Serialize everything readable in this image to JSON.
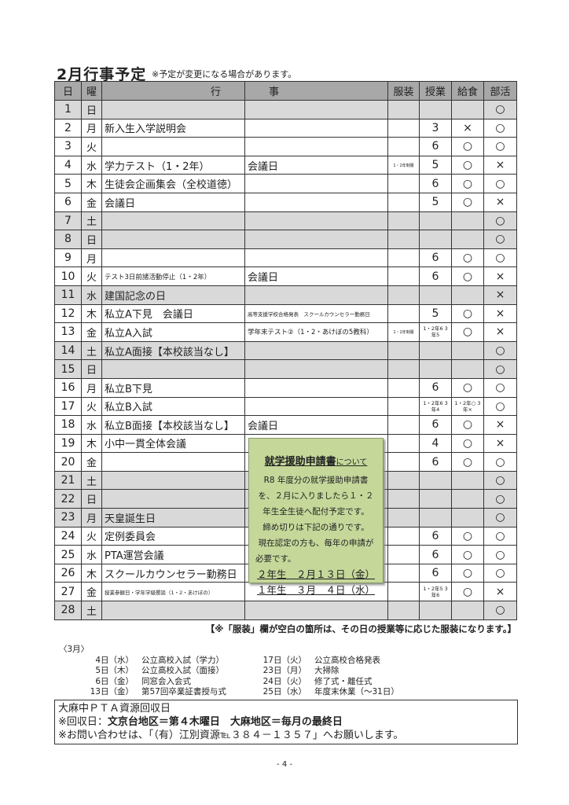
{
  "title": "2月行事予定",
  "subtitle": "※予定が変更になる場合があります。",
  "headers": [
    "日",
    "曜",
    "行",
    "事",
    "服装",
    "授業",
    "給食",
    "部活"
  ],
  "rows": [
    {
      "d": "1",
      "w": "日",
      "e1": "",
      "e2": "",
      "f": "",
      "j": "",
      "k": "",
      "b": "○",
      "hol": true
    },
    {
      "d": "2",
      "w": "月",
      "e1": "新入生入学説明会",
      "e2": "",
      "f": "",
      "j": "3",
      "k": "×",
      "b": "○"
    },
    {
      "d": "3",
      "w": "火",
      "e1": "",
      "e2": "",
      "f": "",
      "j": "6",
      "k": "○",
      "b": "○"
    },
    {
      "d": "4",
      "w": "水",
      "e1": "学力テスト（1・2年）",
      "e2": "会議日",
      "f": "1・2年制服",
      "j": "5",
      "k": "○",
      "b": "×"
    },
    {
      "d": "5",
      "w": "木",
      "e1": "生徒会企画集会（全校道徳）",
      "e2": "",
      "f": "",
      "j": "6",
      "k": "○",
      "b": "○"
    },
    {
      "d": "6",
      "w": "金",
      "e1": "会議日",
      "e2": "",
      "f": "",
      "j": "5",
      "k": "○",
      "b": "×"
    },
    {
      "d": "7",
      "w": "土",
      "e1": "",
      "e2": "",
      "f": "",
      "j": "",
      "k": "",
      "b": "○",
      "hol": true
    },
    {
      "d": "8",
      "w": "日",
      "e1": "",
      "e2": "",
      "f": "",
      "j": "",
      "k": "",
      "b": "○",
      "hol": true
    },
    {
      "d": "9",
      "w": "月",
      "e1": "",
      "e2": "",
      "f": "",
      "j": "6",
      "k": "○",
      "b": "○"
    },
    {
      "d": "10",
      "w": "火",
      "e1": "テスト3日前諸活動停止（1・2年）",
      "e2": "会議日",
      "f": "",
      "j": "6",
      "k": "○",
      "b": "×",
      "e1small": true
    },
    {
      "d": "11",
      "w": "水",
      "e1": "建国記念の日",
      "e2": "",
      "f": "",
      "j": "",
      "k": "",
      "b": "×",
      "hol": true
    },
    {
      "d": "12",
      "w": "木",
      "e1": "私立A下見　会議日",
      "e2": "高等支援学校合格発表　スクールカウンセラー勤務日",
      "f": "",
      "j": "5",
      "k": "○",
      "b": "×",
      "e2tiny": true
    },
    {
      "d": "13",
      "w": "金",
      "e1": "私立A入試",
      "e2": "学年末テスト②（1・2・あけぼの5教科）",
      "f": "1・2年制服",
      "j": "1・2年6 3年5",
      "k": "○",
      "b": "×",
      "e2small": true,
      "jtiny": true
    },
    {
      "d": "14",
      "w": "土",
      "e1": "私立A面接【本校該当なし】",
      "e2": "",
      "f": "",
      "j": "",
      "k": "",
      "b": "○",
      "hol": true
    },
    {
      "d": "15",
      "w": "日",
      "e1": "",
      "e2": "",
      "f": "",
      "j": "",
      "k": "",
      "b": "○",
      "hol": true
    },
    {
      "d": "16",
      "w": "月",
      "e1": "私立B下見",
      "e2": "",
      "f": "",
      "j": "6",
      "k": "○",
      "b": "○"
    },
    {
      "d": "17",
      "w": "火",
      "e1": "私立B入試",
      "e2": "",
      "f": "",
      "j": "1・2年6 3年4",
      "k": "1・2年○ 3年×",
      "b": "○",
      "jtiny": true,
      "ktiny": true
    },
    {
      "d": "18",
      "w": "水",
      "e1": "私立B面接【本校該当なし】",
      "e2": "会議日",
      "f": "",
      "j": "6",
      "k": "○",
      "b": "×"
    },
    {
      "d": "19",
      "w": "木",
      "e1": "小中一貫全体会議",
      "e2": "",
      "f": "",
      "j": "4",
      "k": "○",
      "b": "×"
    },
    {
      "d": "20",
      "w": "金",
      "e1": "",
      "e2": "",
      "f": "",
      "j": "6",
      "k": "○",
      "b": "○"
    },
    {
      "d": "21",
      "w": "土",
      "e1": "",
      "e2": "",
      "f": "",
      "j": "",
      "k": "",
      "b": "○",
      "hol": true
    },
    {
      "d": "22",
      "w": "日",
      "e1": "",
      "e2": "",
      "f": "",
      "j": "",
      "k": "",
      "b": "○",
      "hol": true
    },
    {
      "d": "23",
      "w": "月",
      "e1": "天皇誕生日",
      "e2": "",
      "f": "",
      "j": "",
      "k": "",
      "b": "○",
      "hol": true
    },
    {
      "d": "24",
      "w": "火",
      "e1": "定例委員会",
      "e2": "",
      "f": "",
      "j": "6",
      "k": "○",
      "b": "○"
    },
    {
      "d": "25",
      "w": "水",
      "e1": "PTA運営会議",
      "e2": "",
      "f": "",
      "j": "6",
      "k": "○",
      "b": "○"
    },
    {
      "d": "26",
      "w": "木",
      "e1": "スクールカウンセラー勤務日",
      "e2": "",
      "f": "",
      "j": "6",
      "k": "○",
      "b": "○"
    },
    {
      "d": "27",
      "w": "金",
      "e1": "授業参観日・学年学級懇談（1・2・あけぼの）",
      "e2": "",
      "f": "",
      "j": "1・2年5 3年6",
      "k": "○",
      "b": "×",
      "e1tiny": true,
      "jtiny": true
    },
    {
      "d": "28",
      "w": "土",
      "e1": "",
      "e2": "",
      "f": "",
      "j": "",
      "k": "",
      "b": "○",
      "hol": true
    }
  ],
  "uniform_note": "【※「服装」欄が空白の箇所は、その日の授業等に応じた服装になります。】",
  "notice": {
    "heading": "就学援助申請書",
    "heading_suffix": "について",
    "lines": [
      "R8 年度分の就学援助申請書",
      "を、２月に入りましたら１・２",
      "年生全生徒へ配付予定です。",
      "締め切りは下記の通りです。",
      "現在認定の方も、毎年の申請が",
      "必要です。"
    ],
    "deadlines": [
      "２年生　２月１３日（金）",
      "１年生　３月　４日（水）"
    ]
  },
  "march": {
    "label": "〈3月〉",
    "items": [
      [
        "4日（水）",
        "公立高校入試（学力）",
        "17日（火）",
        "公立高校合格発表"
      ],
      [
        "5日（木）",
        "公立高校入試（面接）",
        "23日（月）",
        "大掃除"
      ],
      [
        "6日（金）",
        "同窓会入会式",
        "24日（火）",
        "修了式・離任式"
      ],
      [
        "13日（金）",
        "第57回卒業証書授与式",
        "25日（水）",
        "年度末休業（～31日）"
      ]
    ]
  },
  "pta": {
    "title": "大麻中ＰＴＡ資源回収日",
    "line1_prefix": "※回収日：",
    "line1_bold": "文京台地区＝第４木曜日　大麻地区＝毎月の最終日",
    "line2": "※お問い合わせは、「（有）江別資源℡３８４－１３５７」へお願いします。"
  },
  "page_number": "- 4 -"
}
